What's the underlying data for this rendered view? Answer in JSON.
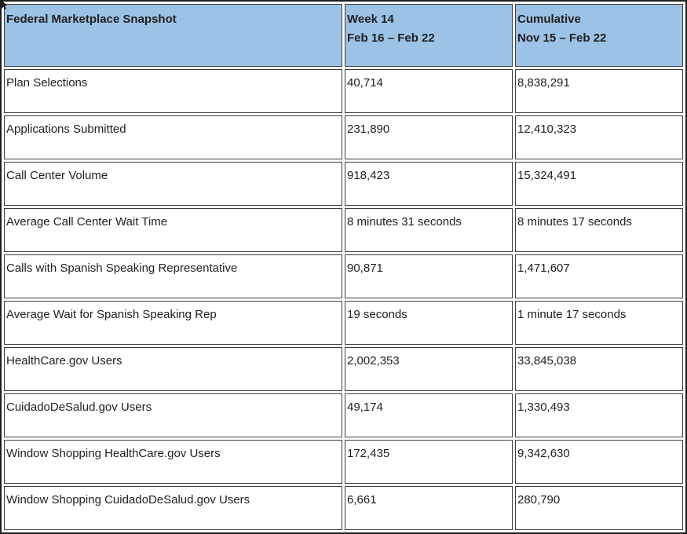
{
  "table": {
    "header": {
      "metric_column_label": "Federal Marketplace Snapshot",
      "week_column": {
        "line1": "Week 14",
        "line2": "Feb 16 – Feb 22"
      },
      "cumulative_column": {
        "line1": "Cumulative",
        "line2": "Nov 15 – Feb 22"
      }
    },
    "rows": [
      {
        "metric": "Plan Selections",
        "week": "40,714",
        "cumulative": "8,838,291"
      },
      {
        "metric": "Applications Submitted",
        "week": "231,890",
        "cumulative": "12,410,323"
      },
      {
        "metric": "Call Center Volume",
        "week": "918,423",
        "cumulative": "15,324,491"
      },
      {
        "metric": "Average Call Center Wait Time",
        "week": "8 minutes 31 seconds",
        "cumulative": "8 minutes 17 seconds"
      },
      {
        "metric": "Calls with Spanish Speaking Representative",
        "week": "90,871",
        "cumulative": "1,471,607"
      },
      {
        "metric": "Average Wait for Spanish Speaking Rep",
        "week": "19 seconds",
        "cumulative": "1 minute 17 seconds"
      },
      {
        "metric": "HealthCare.gov Users",
        "week": "2,002,353",
        "cumulative": "33,845,038"
      },
      {
        "metric": "CuidadoDeSalud.gov Users",
        "week": "49,174",
        "cumulative": "1,330,493"
      },
      {
        "metric": "Window Shopping HealthCare.gov Users",
        "week": "172,435",
        "cumulative": "9,342,630"
      },
      {
        "metric": "Window Shopping CuidadoDeSalud.gov Users",
        "week": "6,661",
        "cumulative": "280,790"
      }
    ]
  },
  "colors": {
    "header_background": "#9CC2E5",
    "cell_border": "#3D3D3D",
    "outer_border": "#1F1F1F",
    "text": "#1F1F1F",
    "background": "#FFFFFF"
  }
}
